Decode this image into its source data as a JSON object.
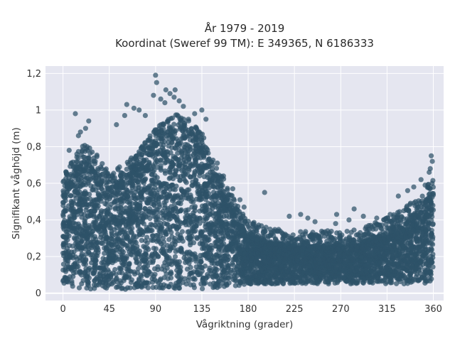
{
  "chart_data": {
    "type": "scatter",
    "title": "År 1979 - 2019",
    "subtitle": "Koordinat (Sweref 99 TM): E 349365, N 6186333",
    "xlabel": "Vågriktning (grader)",
    "ylabel": "Signifikant våghöjd (m)",
    "xlim": [
      -17,
      370
    ],
    "ylim": [
      -0.04,
      1.24
    ],
    "x_ticks": [
      {
        "value": 0,
        "label": "0"
      },
      {
        "value": 45,
        "label": "45"
      },
      {
        "value": 90,
        "label": "90"
      },
      {
        "value": 135,
        "label": "135"
      },
      {
        "value": 180,
        "label": "180"
      },
      {
        "value": 225,
        "label": "225"
      },
      {
        "value": 270,
        "label": "270"
      },
      {
        "value": 315,
        "label": "315"
      },
      {
        "value": 360,
        "label": "360"
      }
    ],
    "y_ticks": [
      {
        "value": 0,
        "label": "0"
      },
      {
        "value": 0.2,
        "label": "0,2"
      },
      {
        "value": 0.4,
        "label": "0,4"
      },
      {
        "value": 0.6,
        "label": "0,6"
      },
      {
        "value": 0.8,
        "label": "0,8"
      },
      {
        "value": 1.0,
        "label": "1"
      },
      {
        "value": 1.2,
        "label": "1,2"
      }
    ],
    "grid": true,
    "legend": "none",
    "background_color": "#e5e6f0",
    "marker_color": "#2e5268",
    "x_range": [
      0,
      360
    ],
    "envelope": {
      "x": [
        0,
        10,
        20,
        30,
        45,
        60,
        75,
        90,
        100,
        110,
        120,
        130,
        140,
        150,
        160,
        170,
        180,
        200,
        225,
        250,
        270,
        290,
        310,
        330,
        345,
        355,
        360
      ],
      "ymin": [
        0.05,
        0.03,
        0.02,
        0.02,
        0.02,
        0.02,
        0.02,
        0.02,
        0.02,
        0.02,
        0.02,
        0.02,
        0.02,
        0.03,
        0.04,
        0.04,
        0.05,
        0.05,
        0.05,
        0.05,
        0.05,
        0.05,
        0.05,
        0.05,
        0.05,
        0.05,
        0.05
      ],
      "ymax": [
        0.55,
        0.68,
        0.74,
        0.7,
        0.58,
        0.63,
        0.72,
        0.82,
        0.87,
        0.9,
        0.88,
        0.84,
        0.75,
        0.62,
        0.5,
        0.4,
        0.32,
        0.28,
        0.26,
        0.26,
        0.27,
        0.28,
        0.32,
        0.38,
        0.45,
        0.52,
        0.55
      ]
    },
    "outliers": [
      {
        "x": 12,
        "y": 0.98
      },
      {
        "x": 17,
        "y": 0.88
      },
      {
        "x": 22,
        "y": 0.9
      },
      {
        "x": 25,
        "y": 0.94
      },
      {
        "x": 15,
        "y": 0.86
      },
      {
        "x": 6,
        "y": 0.78
      },
      {
        "x": 52,
        "y": 0.92
      },
      {
        "x": 60,
        "y": 0.97
      },
      {
        "x": 62,
        "y": 1.03
      },
      {
        "x": 69,
        "y": 1.01
      },
      {
        "x": 74,
        "y": 1.0
      },
      {
        "x": 80,
        "y": 0.97
      },
      {
        "x": 88,
        "y": 1.08
      },
      {
        "x": 90,
        "y": 1.19
      },
      {
        "x": 91,
        "y": 1.15
      },
      {
        "x": 95,
        "y": 1.06
      },
      {
        "x": 99,
        "y": 1.04
      },
      {
        "x": 100,
        "y": 1.11
      },
      {
        "x": 104,
        "y": 1.09
      },
      {
        "x": 108,
        "y": 1.07
      },
      {
        "x": 109,
        "y": 1.11
      },
      {
        "x": 113,
        "y": 1.05
      },
      {
        "x": 117,
        "y": 1.02
      },
      {
        "x": 128,
        "y": 0.98
      },
      {
        "x": 135,
        "y": 1.0
      },
      {
        "x": 139,
        "y": 0.95
      },
      {
        "x": 150,
        "y": 0.71
      },
      {
        "x": 156,
        "y": 0.64
      },
      {
        "x": 165,
        "y": 0.57
      },
      {
        "x": 172,
        "y": 0.51
      },
      {
        "x": 176,
        "y": 0.47
      },
      {
        "x": 196,
        "y": 0.55
      },
      {
        "x": 220,
        "y": 0.42
      },
      {
        "x": 231,
        "y": 0.43
      },
      {
        "x": 238,
        "y": 0.41
      },
      {
        "x": 265,
        "y": 0.38
      },
      {
        "x": 278,
        "y": 0.4
      },
      {
        "x": 283,
        "y": 0.46
      },
      {
        "x": 305,
        "y": 0.41
      },
      {
        "x": 312,
        "y": 0.4
      },
      {
        "x": 318,
        "y": 0.43
      },
      {
        "x": 326,
        "y": 0.53
      },
      {
        "x": 335,
        "y": 0.56
      },
      {
        "x": 341,
        "y": 0.58
      },
      {
        "x": 348,
        "y": 0.62
      },
      {
        "x": 352,
        "y": 0.59
      },
      {
        "x": 356,
        "y": 0.66
      },
      {
        "x": 357,
        "y": 0.68
      },
      {
        "x": 358,
        "y": 0.75
      },
      {
        "x": 359,
        "y": 0.72
      },
      {
        "x": 266,
        "y": 0.43
      },
      {
        "x": 292,
        "y": 0.42
      },
      {
        "x": 299,
        "y": 0.37
      },
      {
        "x": 245,
        "y": 0.39
      }
    ]
  }
}
